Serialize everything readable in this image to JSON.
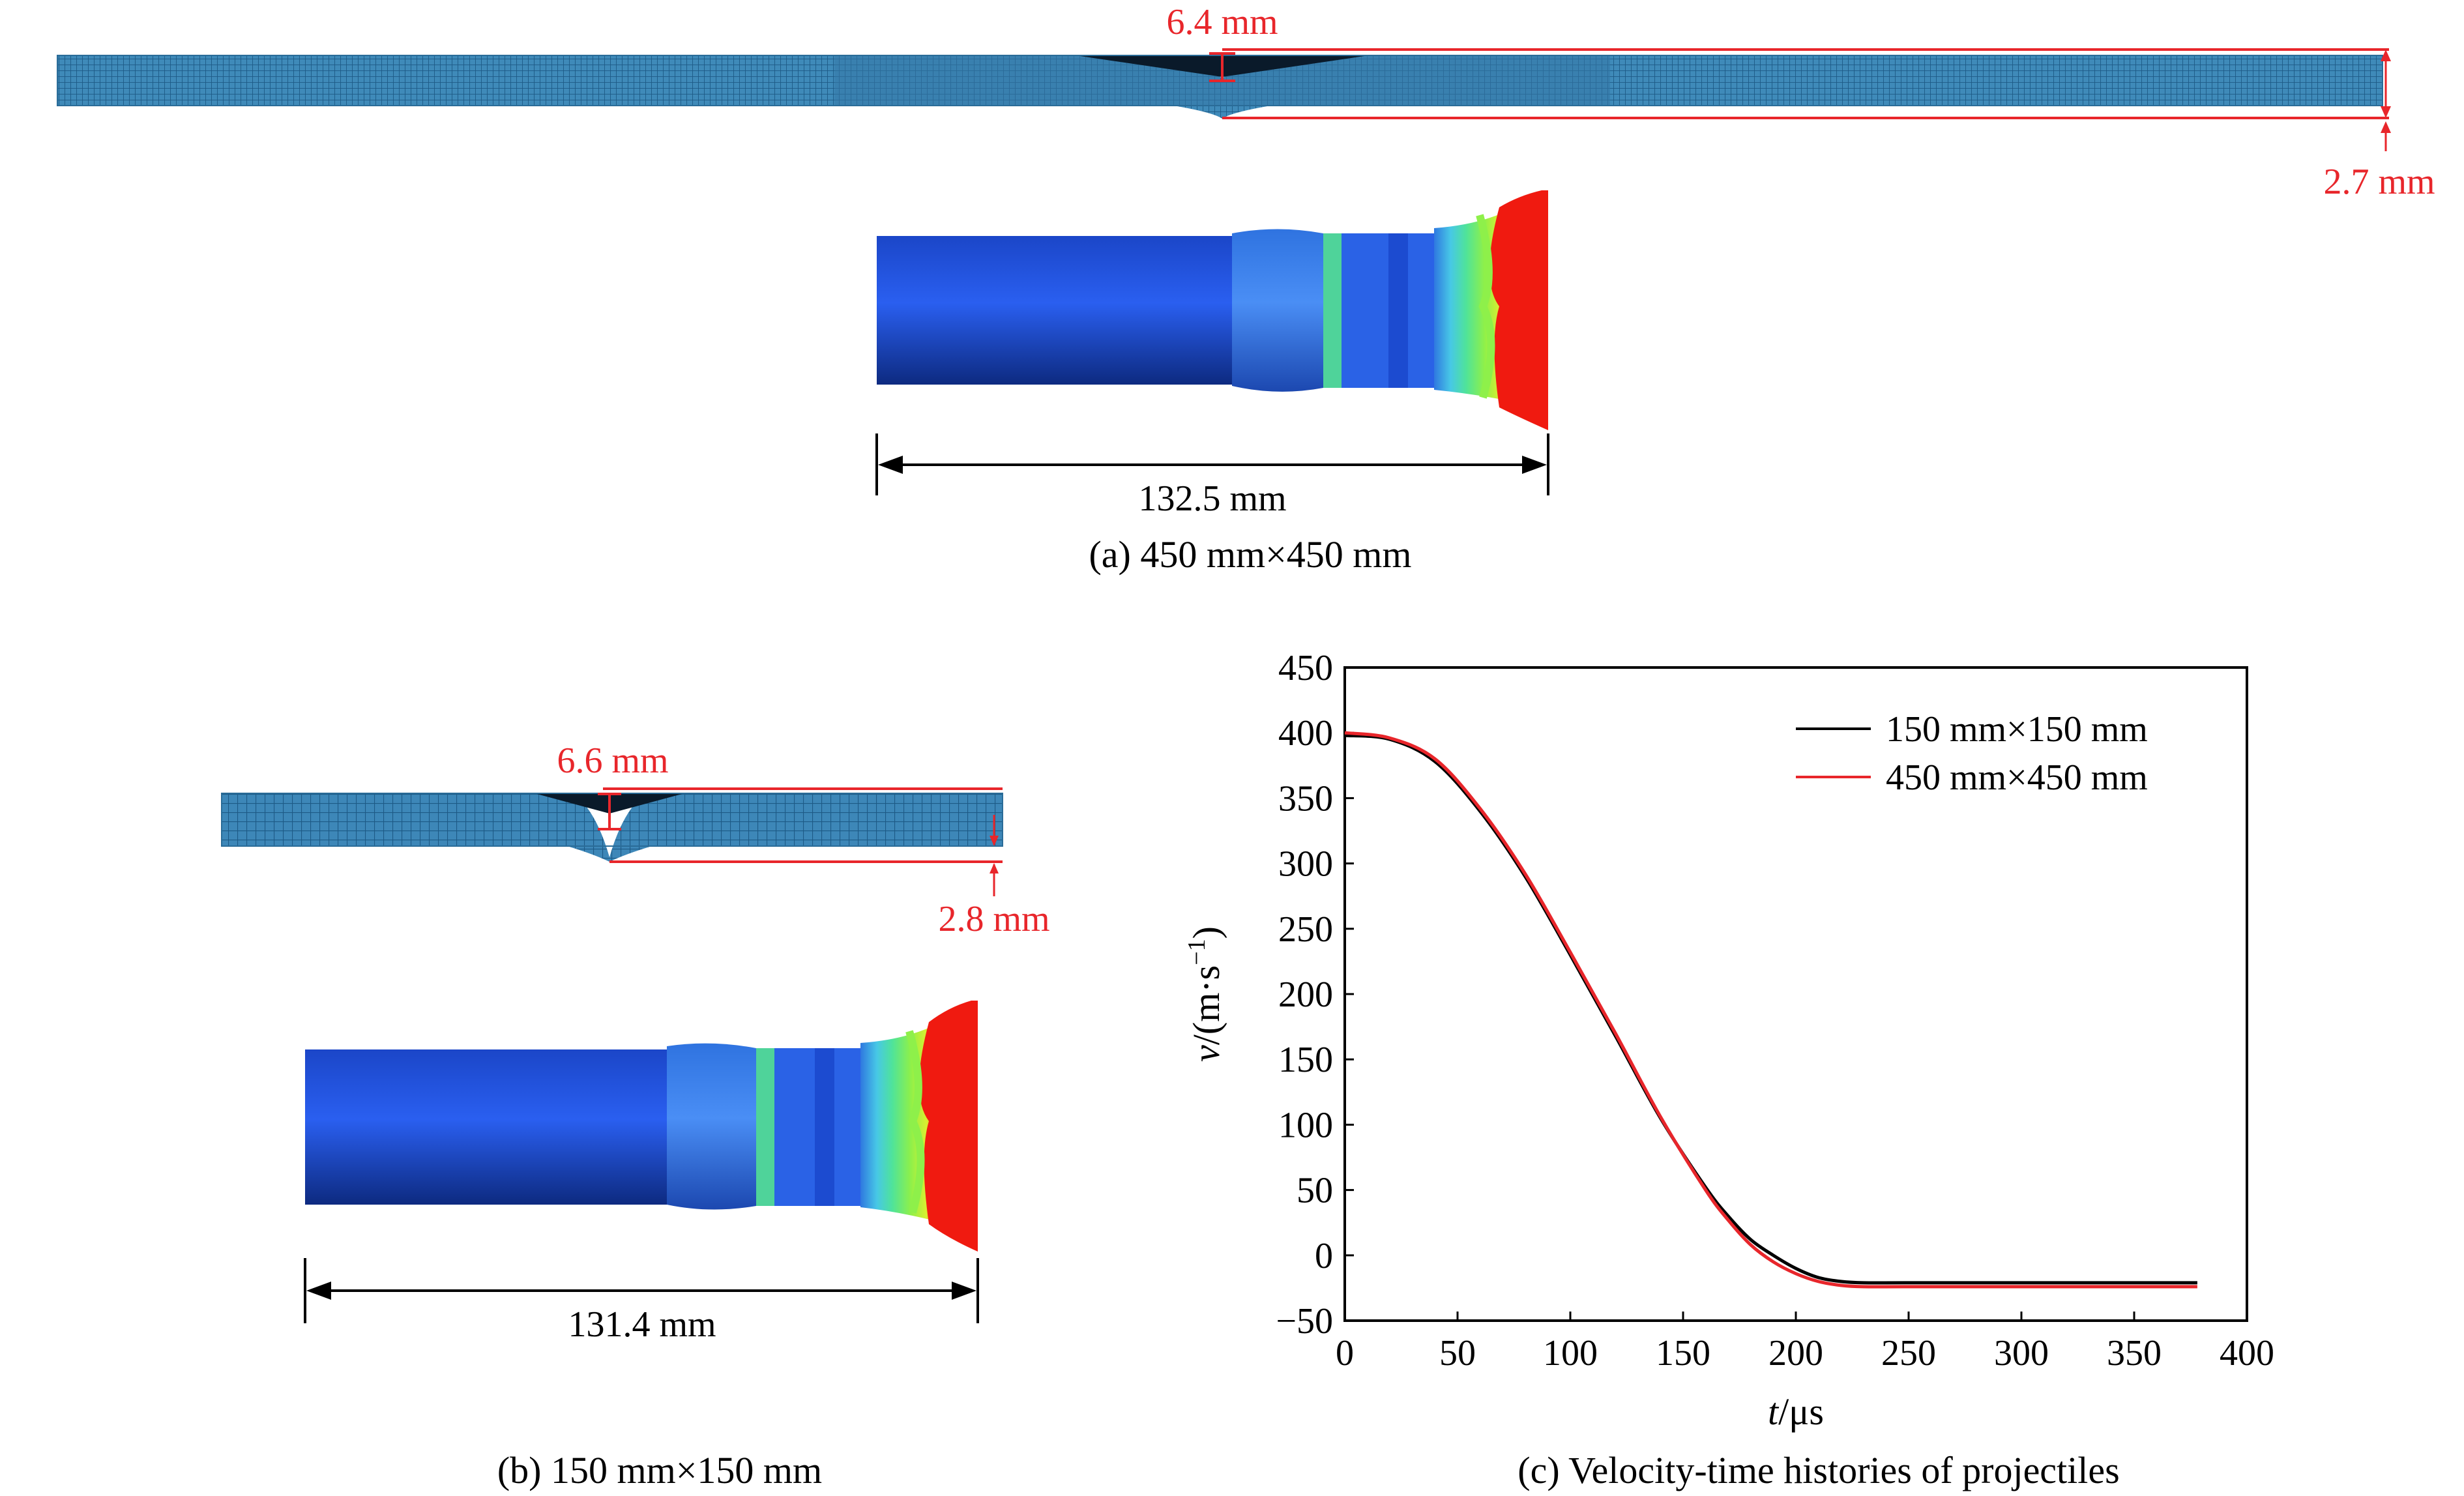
{
  "panel_a": {
    "caption": "(a) 450 mm×450 mm",
    "plate_deflection_label": "6.4 mm",
    "plate_thickness_label": "2.7 mm",
    "projectile_length_label": "132.5 mm"
  },
  "panel_b": {
    "caption": "(b) 150 mm×150 mm",
    "plate_deflection_label": "6.6 mm",
    "plate_thickness_label": "2.8 mm",
    "projectile_length_label": "131.4 mm"
  },
  "panel_c": {
    "caption": "(c) Velocity-time histories of projectiles"
  },
  "colors": {
    "mesh_blue": "#3d87b8",
    "projectile_blue": "#1f4fd8",
    "dimension_red": "#e8262b",
    "series_black": "#000000",
    "series_red": "#e8262b"
  },
  "chart_data": {
    "type": "line",
    "title": "Velocity-time histories of projectiles",
    "xlabel_italic": "t",
    "xlabel_rest": "/μs",
    "ylabel_italic": "v",
    "ylabel_rest": "/(m·s",
    "ylabel_sup": "−1",
    "ylabel_close": ")",
    "xlim": [
      0,
      400
    ],
    "ylim": [
      -50,
      450
    ],
    "xticks": [
      0,
      50,
      100,
      150,
      200,
      250,
      300,
      350,
      400
    ],
    "yticks": [
      -50,
      0,
      50,
      100,
      150,
      200,
      250,
      300,
      350,
      400,
      450
    ],
    "xtick_labels": [
      "0",
      "50",
      "100",
      "150",
      "200",
      "250",
      "300",
      "350",
      "400"
    ],
    "ytick_labels": [
      "−50",
      "0",
      "50",
      "100",
      "150",
      "200",
      "250",
      "300",
      "350",
      "400",
      "450"
    ],
    "legend_position": "top-right",
    "series": [
      {
        "name": "150 mm×150 mm",
        "color": "#000000",
        "x": [
          0,
          20,
          40,
          60,
          80,
          100,
          120,
          140,
          160,
          170,
          180,
          190,
          200,
          210,
          220,
          230,
          250,
          300,
          350,
          378
        ],
        "y": [
          398,
          395,
          378,
          340,
          290,
          230,
          168,
          105,
          52,
          30,
          12,
          0,
          -10,
          -17,
          -20,
          -21,
          -21,
          -21,
          -21,
          -21
        ]
      },
      {
        "name": "450 mm×450 mm",
        "color": "#e8262b",
        "x": [
          0,
          20,
          40,
          60,
          80,
          100,
          120,
          140,
          160,
          170,
          180,
          190,
          200,
          210,
          220,
          230,
          250,
          300,
          350,
          378
        ],
        "y": [
          400,
          396,
          380,
          342,
          292,
          232,
          170,
          106,
          50,
          27,
          8,
          -5,
          -14,
          -20,
          -23,
          -24,
          -24,
          -24,
          -24,
          -24
        ]
      }
    ]
  }
}
